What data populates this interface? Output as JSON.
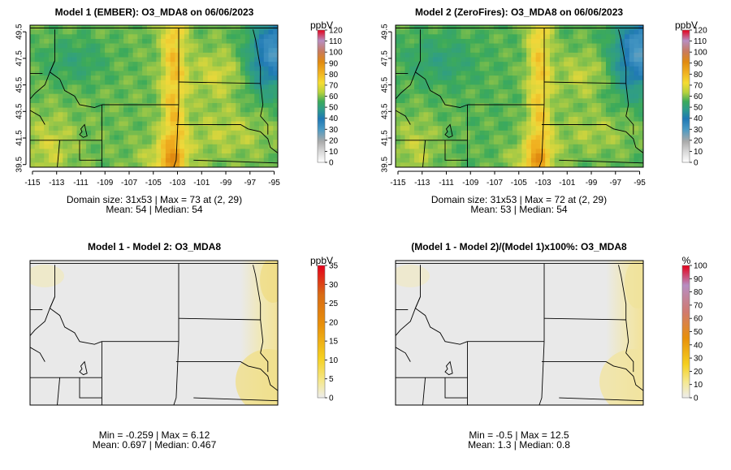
{
  "chart_data": [
    {
      "type": "heatmap",
      "title": "Model 1 (EMBER): O3_MDA8 on 06/06/2023",
      "unit": "ppbV",
      "x_ticks": [
        "-115",
        "-113",
        "-111",
        "-109",
        "-107",
        "-105",
        "-103",
        "-101",
        "-99",
        "-97",
        "-95"
      ],
      "y_ticks": [
        "39.5",
        "41.5",
        "43.5",
        "45.5",
        "47.5",
        "49.5"
      ],
      "xlim": [
        -115.2,
        -94.7
      ],
      "ylim": [
        39.3,
        50.0
      ],
      "colorbar_ticks": [
        "0",
        "10",
        "20",
        "30",
        "40",
        "50",
        "60",
        "70",
        "80",
        "90",
        "100",
        "110",
        "120"
      ],
      "colorbar_range": [
        0,
        120
      ],
      "stats_line1": "Domain size: 31x53 | Max = 73 at (2, 29)",
      "stats_line2": "Mean: 54 |  Median: 54",
      "max": 73,
      "mean": 54,
      "median": 54
    },
    {
      "type": "heatmap",
      "title": "Model 2 (ZeroFires): O3_MDA8 on 06/06/2023",
      "unit": "ppbV",
      "x_ticks": [
        "-115",
        "-113",
        "-111",
        "-109",
        "-107",
        "-105",
        "-103",
        "-101",
        "-99",
        "-97",
        "-95"
      ],
      "y_ticks": [
        "39.5",
        "41.5",
        "43.5",
        "45.5",
        "47.5",
        "49.5"
      ],
      "xlim": [
        -115.2,
        -94.7
      ],
      "ylim": [
        39.3,
        50.0
      ],
      "colorbar_ticks": [
        "0",
        "10",
        "20",
        "30",
        "40",
        "50",
        "60",
        "70",
        "80",
        "90",
        "100",
        "110",
        "120"
      ],
      "colorbar_range": [
        0,
        120
      ],
      "stats_line1": "Domain size: 31x53 | Max = 72 at (2, 29)",
      "stats_line2": "Mean: 53 |  Median: 54",
      "max": 72,
      "mean": 53,
      "median": 54
    },
    {
      "type": "heatmap",
      "title": "Model 1 - Model 2: O3_MDA8",
      "unit": "ppbV",
      "colorbar_ticks": [
        "0",
        "5",
        "10",
        "15",
        "20",
        "25",
        "30",
        "35"
      ],
      "colorbar_range": [
        0,
        35
      ],
      "stats_line1": "Min = -0.259 | Max = 6.12",
      "stats_line2": "Mean: 0.697 |  Median: 0.467",
      "min": -0.259,
      "max": 6.12,
      "mean": 0.697,
      "median": 0.467
    },
    {
      "type": "heatmap",
      "title": "(Model 1 - Model 2)/(Model 1)x100%: O3_MDA8",
      "unit": "%",
      "colorbar_ticks": [
        "0",
        "10",
        "20",
        "30",
        "40",
        "50",
        "60",
        "70",
        "80",
        "90",
        "100"
      ],
      "colorbar_range": [
        0,
        100
      ],
      "stats_line1": "Min = -0.5 | Max = 12.5",
      "stats_line2": "Mean: 1.3 |  Median: 0.8",
      "min": -0.5,
      "max": 12.5,
      "mean": 1.3,
      "median": 0.8
    }
  ],
  "colors": {
    "low_gray": "#e6e6e6",
    "green": "#3caa5a",
    "yellow": "#f5dc32",
    "orange": "#e88a10",
    "red": "#e5001a",
    "blue": "#1f78b4",
    "purple": "#b78ec2"
  }
}
